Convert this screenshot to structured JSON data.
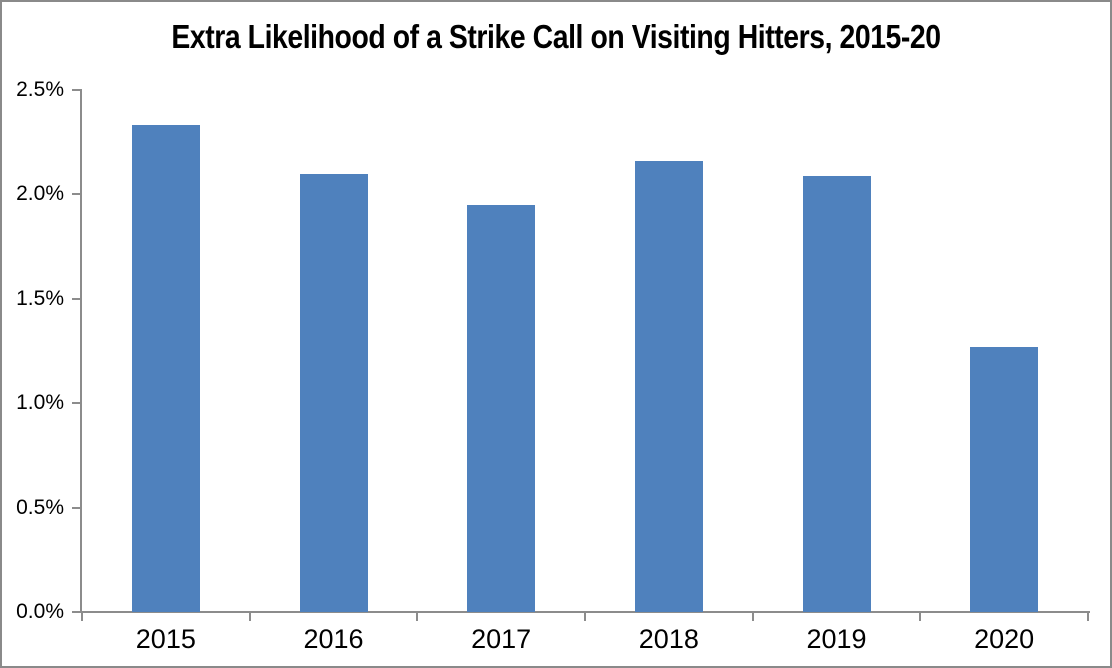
{
  "window": {
    "border_color": "#8a8a8a",
    "background_color": "#ffffff"
  },
  "chart_data": {
    "type": "bar",
    "title": "Extra Likelihood of a Strike Call on Visiting Hitters, 2015-20",
    "categories": [
      "2015",
      "2016",
      "2017",
      "2018",
      "2019",
      "2020"
    ],
    "values": [
      2.33,
      2.1,
      1.95,
      2.16,
      2.09,
      1.27
    ],
    "value_unit": "%",
    "xlabel": "",
    "ylabel": "",
    "ylim": [
      0,
      2.5
    ],
    "ytick_step": 0.5,
    "ytick_labels": [
      "0.0%",
      "0.5%",
      "1.0%",
      "1.5%",
      "2.0%",
      "2.5%"
    ],
    "grid": false,
    "legend": false,
    "bar_color": "#4F81BD",
    "axis_color": "#8C8C8C",
    "text_color": "#000000"
  }
}
